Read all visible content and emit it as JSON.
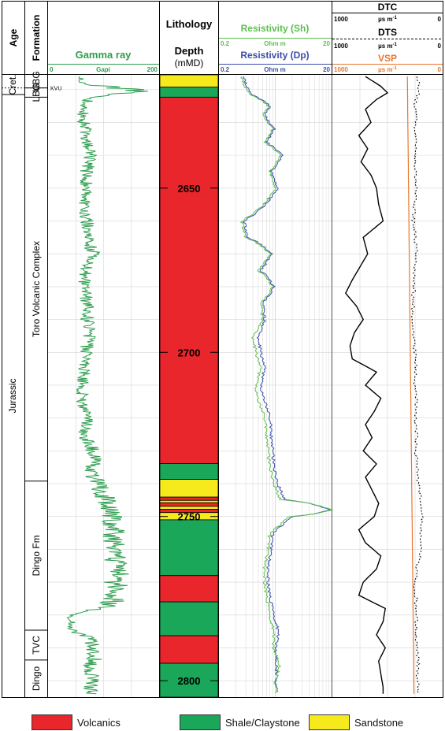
{
  "colors": {
    "gamma": "#2e9e4f",
    "res_sh": "#5cbf4e",
    "res_dp": "#3a4fa8",
    "vsp": "#e8762c",
    "dtc": "#000000",
    "volcanics": "#e8262b",
    "shale": "#1aa75a",
    "sandstone": "#f7ea1c",
    "grid": "#d6d6d6"
  },
  "headers": {
    "age": "Age",
    "formation": "Formation",
    "gamma_title": "Gamma ray",
    "gamma_min": "0",
    "gamma_unit": "Gapi",
    "gamma_max": "200",
    "lithology": "Lithology",
    "depth": "Depth",
    "depth_unit": "(mMD)",
    "res_sh_title": "Resistivity (Sh)",
    "res_dp_title": "Resistivity (Dp)",
    "res_min": "0.2",
    "res_unit": "Ohm m",
    "res_max": "20",
    "dtc_title": "DTC",
    "dts_title": "DTS",
    "vsp_title": "VSP",
    "sonic_min": "1000",
    "sonic_unit": "µs m",
    "sonic_sup": "-1",
    "sonic_max": "0"
  },
  "ages": [
    {
      "label": "Cret.",
      "top_m": 2615.5,
      "base_m": 2621.5
    },
    {
      "label": "Jurassic",
      "top_m": 2621.5,
      "base_m": 2805
    }
  ],
  "formations": [
    {
      "label": "UBG",
      "top_m": 2615.5,
      "base_m": 2619.5
    },
    {
      "label": "LBG",
      "top_m": 2619.5,
      "base_m": 2622.3
    },
    {
      "label": "Toro Volcanic Complex",
      "top_m": 2622.3,
      "base_m": 2739.2
    },
    {
      "label": "Dingo Fm",
      "top_m": 2739.2,
      "base_m": 2784.6
    },
    {
      "label": "TVC",
      "top_m": 2784.6,
      "base_m": 2793.7
    },
    {
      "label": "Dingo",
      "top_m": 2793.7,
      "base_m": 2805
    }
  ],
  "marker": {
    "label": "KVU",
    "depth_m": 2619.5
  },
  "chart_data": {
    "type": "well-log",
    "depth_axis": {
      "label": "Depth",
      "unit": "mMD",
      "range": [
        2615.5,
        2805
      ],
      "ticks": [
        2650,
        2700,
        2750,
        2800
      ]
    },
    "lithology": [
      {
        "top_m": 2615.5,
        "base_m": 2619.2,
        "type": "sandstone"
      },
      {
        "top_m": 2619.2,
        "base_m": 2622.3,
        "type": "shale"
      },
      {
        "top_m": 2622.3,
        "base_m": 2733.9,
        "type": "volcanics"
      },
      {
        "top_m": 2733.9,
        "base_m": 2738.7,
        "type": "shale"
      },
      {
        "top_m": 2738.7,
        "base_m": 2744.1,
        "type": "sandstone"
      },
      {
        "top_m": 2744.1,
        "base_m": 2745.1,
        "type": "volcanics"
      },
      {
        "top_m": 2745.1,
        "base_m": 2745.8,
        "type": "sandstone"
      },
      {
        "top_m": 2745.8,
        "base_m": 2746.9,
        "type": "volcanics"
      },
      {
        "top_m": 2746.9,
        "base_m": 2747.8,
        "type": "sandstone"
      },
      {
        "top_m": 2747.8,
        "base_m": 2748.8,
        "type": "volcanics"
      },
      {
        "top_m": 2748.8,
        "base_m": 2751.0,
        "type": "sandstone"
      },
      {
        "top_m": 2751.0,
        "base_m": 2768.0,
        "type": "shale"
      },
      {
        "top_m": 2768.0,
        "base_m": 2776.0,
        "type": "volcanics"
      },
      {
        "top_m": 2776.0,
        "base_m": 2786.3,
        "type": "shale"
      },
      {
        "top_m": 2786.3,
        "base_m": 2794.7,
        "type": "volcanics"
      },
      {
        "top_m": 2794.7,
        "base_m": 2805.0,
        "type": "shale"
      }
    ],
    "gamma_ray": {
      "unit": "Gapi",
      "range": [
        0,
        200
      ],
      "depth": [
        2616,
        2618,
        2620,
        2621,
        2622,
        2625,
        2630,
        2635,
        2640,
        2645,
        2650,
        2655,
        2660,
        2665,
        2670,
        2675,
        2680,
        2685,
        2690,
        2695,
        2700,
        2705,
        2710,
        2715,
        2720,
        2725,
        2730,
        2733,
        2735,
        2740,
        2745,
        2748,
        2750,
        2752,
        2755,
        2760,
        2765,
        2770,
        2775,
        2777,
        2780,
        2785,
        2787,
        2790,
        2793,
        2795,
        2800,
        2804
      ],
      "values": [
        55,
        60,
        150,
        160,
        85,
        60,
        65,
        70,
        75,
        70,
        68,
        65,
        70,
        75,
        80,
        70,
        65,
        70,
        72,
        75,
        68,
        65,
        62,
        60,
        70,
        65,
        80,
        95,
        75,
        90,
        105,
        110,
        115,
        110,
        120,
        118,
        125,
        122,
        120,
        110,
        40,
        45,
        75,
        80,
        85,
        75,
        78,
        80
      ]
    },
    "resistivity_sh": {
      "unit": "Ohm m",
      "range": [
        0.2,
        20
      ],
      "scale": "log",
      "depth": [
        2616,
        2620,
        2622,
        2625,
        2628,
        2632,
        2636,
        2640,
        2645,
        2650,
        2655,
        2660,
        2665,
        2670,
        2675,
        2680,
        2685,
        2690,
        2695,
        2700,
        2705,
        2710,
        2715,
        2720,
        2725,
        2730,
        2735,
        2740,
        2745,
        2748,
        2750,
        2752,
        2755,
        2760,
        2765,
        2770,
        2775,
        2780,
        2785,
        2790,
        2795,
        2800,
        2804
      ],
      "values": [
        0.5,
        0.6,
        0.8,
        1.5,
        1.2,
        1.8,
        1.3,
        2.4,
        1.6,
        2.0,
        1.2,
        0.5,
        0.6,
        1.6,
        1.0,
        1.8,
        1.1,
        1.2,
        0.8,
        0.9,
        1.1,
        0.9,
        1.0,
        1.3,
        1.4,
        1.5,
        1.6,
        1.9,
        2.5,
        19.5,
        3.5,
        2.6,
        1.6,
        1.5,
        1.3,
        1.3,
        1.4,
        1.6,
        1.9,
        1.8,
        2.4,
        2.0,
        2.1
      ]
    },
    "resistivity_dp": {
      "unit": "Ohm m",
      "range": [
        0.2,
        20
      ],
      "scale": "log",
      "depth": [
        2616,
        2620,
        2622,
        2625,
        2628,
        2632,
        2636,
        2640,
        2645,
        2650,
        2655,
        2660,
        2665,
        2670,
        2675,
        2680,
        2685,
        2690,
        2695,
        2700,
        2705,
        2710,
        2715,
        2720,
        2725,
        2730,
        2735,
        2740,
        2745,
        2748,
        2750,
        2752,
        2755,
        2760,
        2765,
        2770,
        2775,
        2780,
        2785,
        2790,
        2795,
        2800,
        2804
      ],
      "values": [
        0.55,
        0.65,
        0.85,
        1.6,
        1.3,
        1.9,
        1.4,
        2.6,
        1.7,
        2.2,
        1.3,
        0.55,
        0.65,
        1.7,
        1.1,
        1.9,
        1.2,
        1.3,
        1.0,
        1.1,
        1.3,
        1.1,
        1.3,
        1.6,
        1.7,
        1.8,
        1.9,
        2.2,
        3.0,
        18.0,
        4.0,
        2.9,
        1.8,
        1.7,
        1.5,
        1.5,
        1.6,
        1.9,
        2.3,
        2.0,
        2.1,
        2.1,
        2.1
      ]
    },
    "dtc": {
      "unit": "µs m-1",
      "range": [
        1000,
        0
      ],
      "depth": [
        2616,
        2619,
        2621,
        2623,
        2626,
        2630,
        2634,
        2638,
        2642,
        2646,
        2650,
        2655,
        2660,
        2665,
        2670,
        2674,
        2678,
        2682,
        2686,
        2690,
        2694,
        2698,
        2702,
        2706,
        2710,
        2714,
        2718,
        2722,
        2726,
        2730,
        2734,
        2738,
        2742,
        2746,
        2750,
        2754,
        2758,
        2762,
        2766,
        2770,
        2774,
        2778,
        2782,
        2786,
        2790,
        2794,
        2798,
        2802,
        2804
      ],
      "values": [
        700,
        560,
        500,
        600,
        700,
        650,
        760,
        680,
        740,
        650,
        600,
        580,
        540,
        720,
        680,
        750,
        820,
        880,
        780,
        720,
        800,
        840,
        820,
        600,
        700,
        560,
        620,
        700,
        640,
        720,
        600,
        700,
        640,
        580,
        620,
        760,
        700,
        560,
        600,
        720,
        760,
        520,
        540,
        600,
        520,
        580,
        560,
        540,
        540
      ]
    },
    "dts": {
      "unit": "µs m-1",
      "range": [
        1000,
        0
      ],
      "depth": [
        2616,
        2620,
        2624,
        2628,
        2632,
        2636,
        2640,
        2645,
        2650,
        2655,
        2660,
        2665,
        2670,
        2675,
        2680,
        2685,
        2690,
        2695,
        2700,
        2705,
        2710,
        2715,
        2720,
        2725,
        2730,
        2735,
        2740,
        2745,
        2750,
        2755,
        2760,
        2765,
        2770,
        2775,
        2780,
        2785,
        2790,
        2795,
        2800,
        2804
      ],
      "values": [
        230,
        210,
        250,
        240,
        255,
        235,
        245,
        250,
        240,
        255,
        265,
        250,
        240,
        255,
        260,
        270,
        265,
        260,
        250,
        245,
        255,
        235,
        250,
        240,
        245,
        230,
        220,
        200,
        180,
        200,
        190,
        230,
        250,
        240,
        235,
        245,
        230,
        220,
        230,
        220
      ]
    },
    "vsp": {
      "unit": "µs m-1",
      "range": [
        1000,
        0
      ],
      "depth": [
        2616,
        2804
      ],
      "values": [
        320,
        260
      ]
    }
  },
  "legend": [
    {
      "label": "Volcanics",
      "color_key": "volcanics"
    },
    {
      "label": "Shale/Claystone",
      "color_key": "shale"
    },
    {
      "label": "Sandstone",
      "color_key": "sandstone"
    }
  ]
}
